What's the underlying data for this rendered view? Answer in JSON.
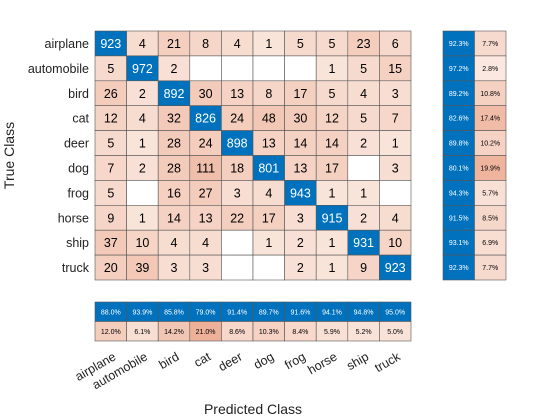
{
  "chart_data": {
    "type": "heatmap",
    "xlabel": "Predicted Class",
    "ylabel": "True Class",
    "classes": [
      "airplane",
      "automobile",
      "bird",
      "cat",
      "deer",
      "dog",
      "frog",
      "horse",
      "ship",
      "truck"
    ],
    "matrix": [
      [
        923,
        4,
        21,
        8,
        4,
        1,
        5,
        5,
        23,
        6
      ],
      [
        5,
        972,
        2,
        null,
        null,
        null,
        null,
        1,
        5,
        15
      ],
      [
        26,
        2,
        892,
        30,
        13,
        8,
        17,
        5,
        4,
        3
      ],
      [
        12,
        4,
        32,
        826,
        24,
        48,
        30,
        12,
        5,
        7
      ],
      [
        5,
        1,
        28,
        24,
        898,
        13,
        14,
        14,
        2,
        1
      ],
      [
        7,
        2,
        28,
        111,
        18,
        801,
        13,
        17,
        null,
        3
      ],
      [
        5,
        null,
        16,
        27,
        3,
        4,
        943,
        1,
        1,
        null
      ],
      [
        9,
        1,
        14,
        13,
        22,
        17,
        3,
        915,
        2,
        4
      ],
      [
        37,
        10,
        4,
        4,
        null,
        1,
        2,
        1,
        931,
        10
      ],
      [
        20,
        39,
        3,
        3,
        null,
        null,
        2,
        1,
        9,
        923
      ]
    ],
    "row_summary": {
      "correct": [
        "92.3%",
        "97.2%",
        "89.2%",
        "82.6%",
        "89.8%",
        "80.1%",
        "94.3%",
        "91.5%",
        "93.1%",
        "92.3%"
      ],
      "incorrect": [
        "7.7%",
        "2.8%",
        "10.8%",
        "17.4%",
        "10.2%",
        "19.9%",
        "5.7%",
        "8.5%",
        "6.9%",
        "7.7%"
      ]
    },
    "column_summary": {
      "correct": [
        "88.0%",
        "93.9%",
        "85.8%",
        "79.0%",
        "91.4%",
        "89.7%",
        "91.6%",
        "94.1%",
        "94.8%",
        "95.0%"
      ],
      "incorrect": [
        "12.0%",
        "6.1%",
        "14.2%",
        "21.0%",
        "8.6%",
        "10.3%",
        "8.4%",
        "5.9%",
        "5.2%",
        "5.0%"
      ]
    },
    "colors": {
      "diagonal": "#0072BD",
      "diagonal_text": "#ffffff",
      "offdiag_light": "#fdf2ec",
      "offdiag_dark": "#ecae96",
      "text": "#000000",
      "grid": "#555555"
    }
  }
}
